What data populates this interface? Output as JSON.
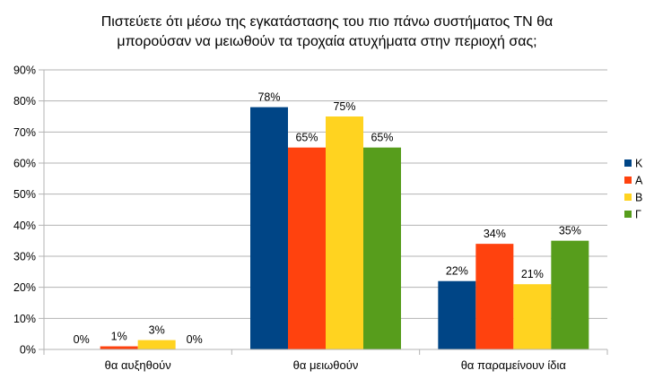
{
  "chart_data": {
    "type": "bar",
    "title_lines": [
      "Πιστεύετε ότι μέσω της εγκατάστασης του πιο πάνω συστήματος ΤΝ θα",
      "μπορούσαν να μειωθούν τα τροχαία ατυχήματα στην περιοχή σας;"
    ],
    "categories": [
      "θα αυξηθούν",
      "θα μειωθούν",
      "θα παραμείνουν ίδια"
    ],
    "series": [
      {
        "name": "Κ",
        "color": "#004586",
        "values": [
          0,
          78,
          22
        ],
        "labels": [
          "0%",
          "78%",
          "22%"
        ]
      },
      {
        "name": "Α",
        "color": "#ff420e",
        "values": [
          1,
          65,
          34
        ],
        "labels": [
          "1%",
          "65%",
          "34%"
        ]
      },
      {
        "name": "Β",
        "color": "#ffd320",
        "values": [
          3,
          75,
          21
        ],
        "labels": [
          "3%",
          "75%",
          "21%"
        ]
      },
      {
        "name": "Γ",
        "color": "#579d1c",
        "values": [
          0,
          65,
          35
        ],
        "labels": [
          "0%",
          "65%",
          "35%"
        ]
      }
    ],
    "yticks": [
      "0%",
      "10%",
      "20%",
      "30%",
      "40%",
      "50%",
      "60%",
      "70%",
      "80%",
      "90%"
    ],
    "ylim": [
      0,
      90
    ],
    "grid": true,
    "legend_position": "right"
  }
}
